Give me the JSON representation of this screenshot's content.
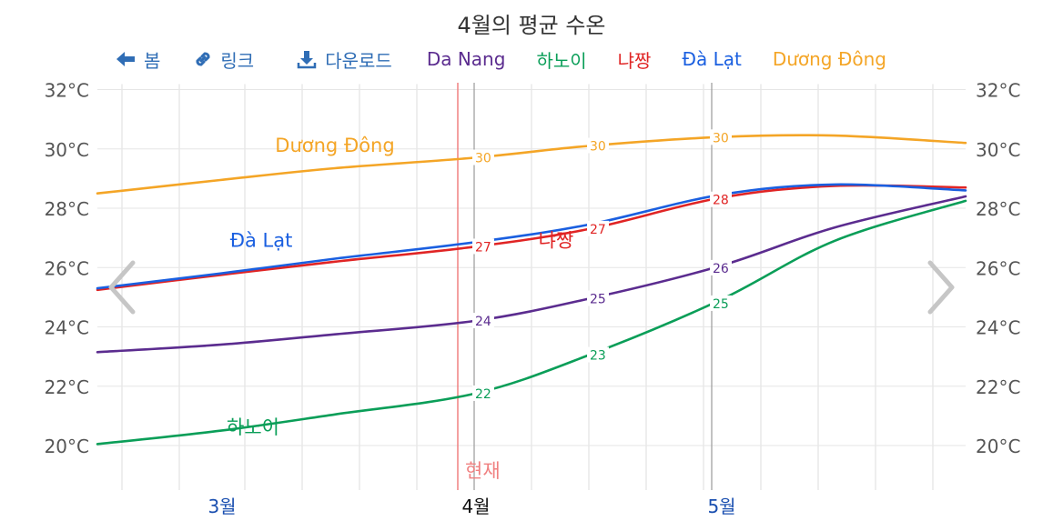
{
  "title": "4월의 평균 수온",
  "toolbar": {
    "back_label": "봄",
    "link_label": "링크",
    "download_label": "다운로드"
  },
  "icons": {
    "back": "arrow-left-icon",
    "link": "link-icon",
    "download": "download-icon",
    "prev": "chevron-left-icon",
    "next": "chevron-right-icon"
  },
  "chart_data": {
    "type": "line",
    "title": "4월의 평균 수온",
    "x_range": [
      "02-15",
      "05-31"
    ],
    "ylim": [
      18.5,
      32
    ],
    "y_ticks": [
      20,
      22,
      24,
      26,
      28,
      30,
      32
    ],
    "y_tick_labels": [
      "20°C",
      "22°C",
      "24°C",
      "26°C",
      "28°C",
      "30°C",
      "32°C"
    ],
    "month_labels": [
      {
        "date": "03-01",
        "label": "3월",
        "current": false
      },
      {
        "date": "04-01",
        "label": "4월",
        "current": true
      },
      {
        "date": "05-01",
        "label": "5월",
        "current": false
      }
    ],
    "week_gridlines": [
      "02-18",
      "02-25",
      "03-04",
      "03-11",
      "03-18",
      "03-25",
      "04-01",
      "04-08",
      "04-15",
      "04-22",
      "04-29",
      "05-06",
      "05-13",
      "05-20",
      "05-27"
    ],
    "range_lines": [
      "04-01",
      "04-30"
    ],
    "current": {
      "date": "03-30",
      "label": "현재",
      "color": "#f08080"
    },
    "series": [
      {
        "name": "Da Nang",
        "color": "#5b2c8f",
        "x": [
          "02-15",
          "03-01",
          "03-15",
          "04-01",
          "04-15",
          "05-01",
          "05-15",
          "05-31"
        ],
        "y": [
          23.15,
          23.4,
          23.75,
          24.2,
          24.95,
          26.05,
          27.35,
          28.4
        ],
        "labels": [
          {
            "date": "04-01",
            "value": 24,
            "text": "24"
          },
          {
            "date": "04-15",
            "value": 25,
            "text": "25"
          },
          {
            "date": "04-30",
            "value": 26,
            "text": "26"
          }
        ]
      },
      {
        "name": "하노이",
        "color": "#0a9e58",
        "x": [
          "02-15",
          "03-01",
          "03-15",
          "04-01",
          "04-15",
          "05-01",
          "05-15",
          "05-31"
        ],
        "y": [
          20.05,
          20.5,
          21.05,
          21.75,
          23.05,
          24.9,
          26.9,
          28.25
        ],
        "labels": [
          {
            "date": "04-01",
            "value": 22,
            "text": "22"
          },
          {
            "date": "04-15",
            "value": 23,
            "text": "23"
          },
          {
            "date": "04-30",
            "value": 25,
            "text": "25"
          }
        ]
      },
      {
        "name": "냐짱",
        "color": "#e02424",
        "x": [
          "02-15",
          "03-01",
          "03-15",
          "04-01",
          "04-15",
          "05-01",
          "05-15",
          "05-31"
        ],
        "y": [
          25.25,
          25.75,
          26.2,
          26.7,
          27.3,
          28.35,
          28.75,
          28.7
        ],
        "labels": [
          {
            "date": "04-01",
            "value": 27,
            "text": "27"
          },
          {
            "date": "04-15",
            "value": 27,
            "text": "27"
          },
          {
            "date": "04-30",
            "value": 28,
            "text": "28"
          }
        ]
      },
      {
        "name": "Đà Lạt",
        "color": "#1a5fe0",
        "x": [
          "02-15",
          "03-01",
          "03-15",
          "04-01",
          "04-15",
          "05-01",
          "05-15",
          "05-31"
        ],
        "y": [
          25.3,
          25.8,
          26.3,
          26.85,
          27.45,
          28.45,
          28.8,
          28.6
        ],
        "labels": []
      },
      {
        "name": "Dương Đông",
        "color": "#f4a526",
        "x": [
          "02-15",
          "03-01",
          "03-15",
          "04-01",
          "04-15",
          "05-01",
          "05-15",
          "05-31"
        ],
        "y": [
          28.5,
          28.95,
          29.35,
          29.7,
          30.1,
          30.4,
          30.45,
          30.2
        ],
        "labels": [
          {
            "date": "04-01",
            "value": 30,
            "text": "30"
          },
          {
            "date": "04-15",
            "value": 30,
            "text": "30"
          },
          {
            "date": "04-30",
            "value": 30,
            "text": "30"
          }
        ]
      }
    ],
    "series_labels": [
      {
        "series": "Dương Đông",
        "date": "03-15",
        "value": 29.9
      },
      {
        "series": "Đà Lạt",
        "date": "03-06",
        "value": 26.7
      },
      {
        "series": "냐짱",
        "date": "04-11",
        "value": 26.7
      },
      {
        "series": "하노이",
        "date": "03-05",
        "value": 20.4
      }
    ]
  }
}
